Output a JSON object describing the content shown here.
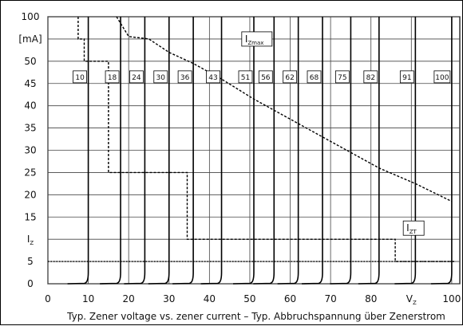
{
  "chart_data": {
    "type": "line",
    "caption": "Typ. Zener voltage vs. zener current  –  Typ. Abbruchspannung über Zenerstrom",
    "x_ticks": [
      "0",
      "10",
      "20",
      "30",
      "40",
      "50",
      "60",
      "70",
      "80",
      "V",
      "100"
    ],
    "x_tick_values": [
      0,
      10,
      20,
      30,
      40,
      50,
      60,
      70,
      80,
      90,
      100
    ],
    "xlim": [
      0,
      102
    ],
    "y_ticks": [
      "100",
      "[mA]",
      "50",
      "45",
      "40",
      "35",
      "30",
      "25",
      "20",
      "15",
      "I",
      "5",
      "0"
    ],
    "y_tick_values": [
      100,
      55,
      50,
      45,
      40,
      35,
      30,
      25,
      20,
      15,
      10,
      5,
      0
    ],
    "y_scale": "piecewise",
    "grid": true,
    "zener_voltages": [
      "10",
      "18",
      "24",
      "30",
      "36",
      "43",
      "51",
      "56",
      "62",
      "68",
      "75",
      "82",
      "91",
      "100"
    ],
    "zener_voltage_values": [
      10,
      18,
      24,
      30,
      36,
      43,
      51,
      56,
      62,
      68,
      75,
      82,
      91,
      100
    ],
    "series": [
      {
        "name": "I_Zmax",
        "label_main": "I",
        "label_sub": "Zmax",
        "style": "dashed",
        "x": [
          17,
          20,
          25,
          30,
          36,
          43,
          51,
          56,
          62,
          68,
          75,
          82,
          91,
          100
        ],
        "y": [
          100,
          60,
          55,
          52,
          49.5,
          46,
          41.5,
          39,
          36,
          33,
          29.5,
          26,
          22.5,
          18.5
        ]
      },
      {
        "name": "I_ZT",
        "label_main": "I",
        "label_sub": "ZT",
        "style": "dashed",
        "x": [
          7.5,
          7.5,
          9,
          9,
          15,
          15,
          34.5,
          34.5,
          86,
          86,
          101
        ],
        "y": [
          100,
          55,
          55,
          50,
          50,
          25,
          25,
          10,
          10,
          5,
          5
        ]
      },
      {
        "name": "baseline",
        "style": "dotted",
        "x": [
          0,
          101
        ],
        "y": [
          5,
          5
        ]
      }
    ],
    "colors": {
      "curve": "#000000",
      "grid": "#444444",
      "background": "#ffffff"
    }
  }
}
